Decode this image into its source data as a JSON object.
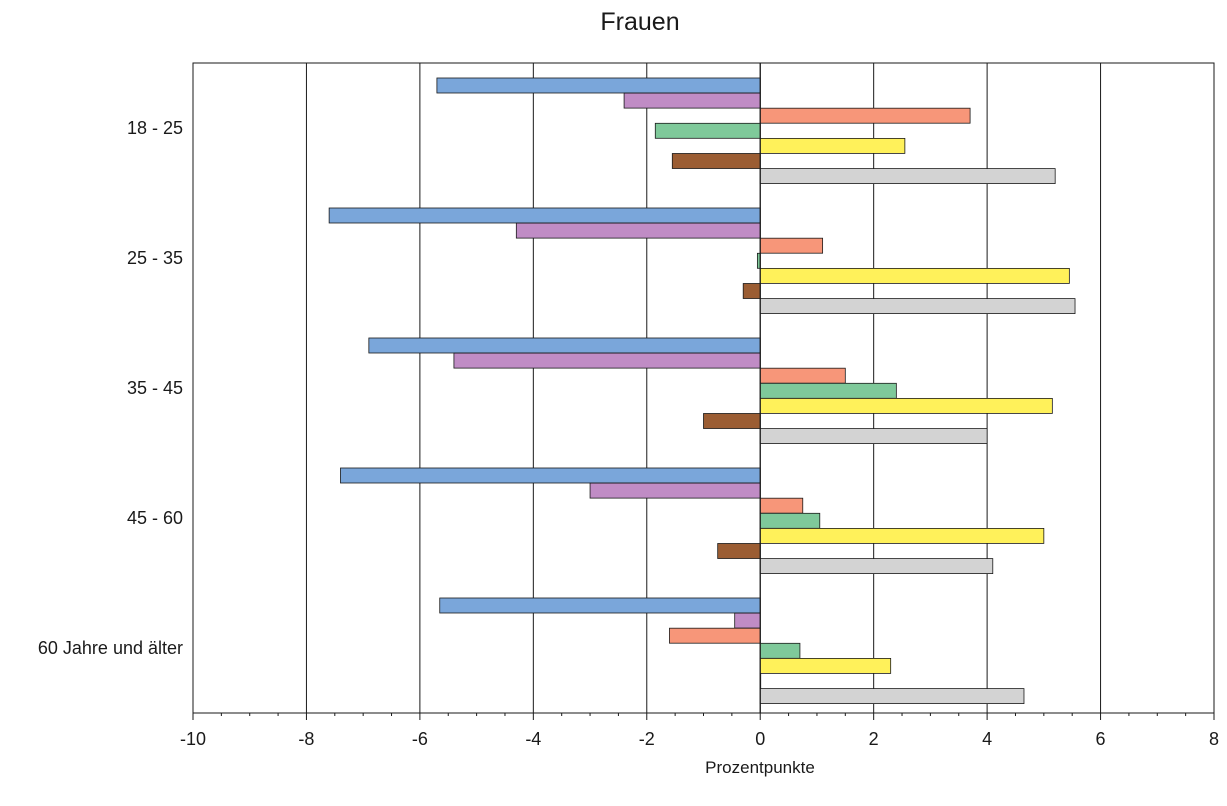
{
  "chart_data": {
    "type": "bar",
    "orientation": "horizontal",
    "title": "Frauen",
    "xlabel": "Prozentpunkte",
    "ylabel": "",
    "xlim": [
      -10,
      8
    ],
    "xticks": [
      -10,
      -8,
      -6,
      -4,
      -2,
      0,
      2,
      4,
      6,
      8
    ],
    "grid": "vertical",
    "legend": "none",
    "categories": [
      "18 - 25",
      "25 - 35",
      "35 - 45",
      "45 - 60",
      "60 Jahre und älter"
    ],
    "series": [
      {
        "color": "#7aa6da",
        "values": [
          -5.7,
          -7.6,
          -6.9,
          -7.4,
          -5.65
        ]
      },
      {
        "color": "#c08cc5",
        "values": [
          -2.4,
          -4.3,
          -5.4,
          -3.0,
          -0.45
        ]
      },
      {
        "color": "#f79679",
        "values": [
          3.7,
          1.1,
          1.5,
          0.75,
          -1.6
        ]
      },
      {
        "color": "#7fc99a",
        "values": [
          -1.85,
          -0.05,
          2.4,
          1.05,
          0.7
        ]
      },
      {
        "color": "#fff15a",
        "values": [
          2.55,
          5.45,
          5.15,
          5.0,
          2.3
        ]
      },
      {
        "color": "#9b5d33",
        "values": [
          -1.55,
          -0.3,
          -1.0,
          -0.75,
          0.0
        ]
      },
      {
        "color": "#d3d3d3",
        "values": [
          5.2,
          5.55,
          4.0,
          4.1,
          4.65
        ]
      }
    ]
  }
}
